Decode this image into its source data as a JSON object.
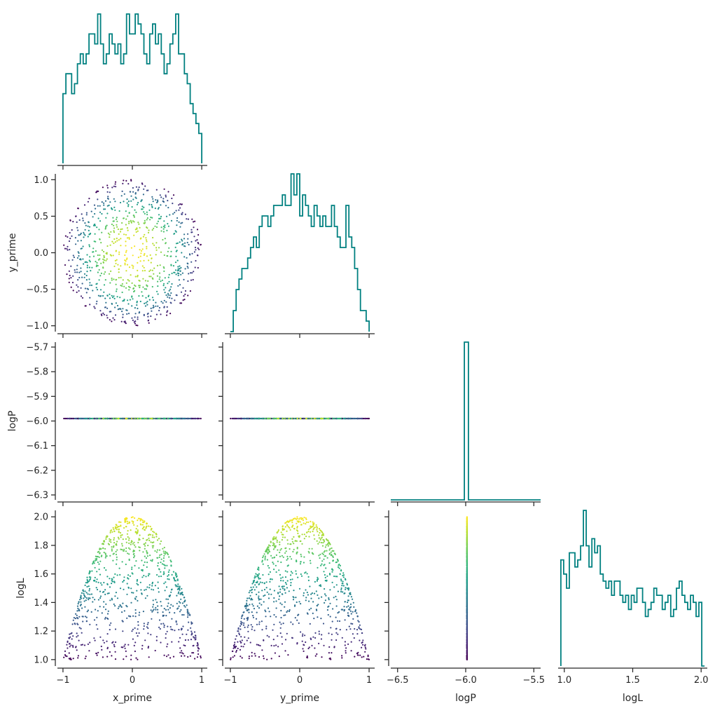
{
  "chart_data": {
    "type": "pairplot",
    "variables": [
      "x_prime",
      "y_prime",
      "logP",
      "logL"
    ],
    "axis_labels": {
      "x": [
        "x_prime",
        "y_prime",
        "logP",
        "logL"
      ],
      "y": [
        "y_prime",
        "logP",
        "logL"
      ]
    },
    "ranges": {
      "x_prime": [
        -1.08,
        1.08
      ],
      "y_prime": [
        -1.08,
        1.08
      ],
      "logP": [
        -6.32,
        -5.68
      ],
      "logP_hist": [
        -6.55,
        -5.45
      ],
      "logL": [
        0.955,
        2.045
      ]
    },
    "ticks": {
      "x_prime": [
        -1,
        0,
        1
      ],
      "y_prime_x": [
        -1,
        0,
        1
      ],
      "y_prime_y": [
        -1.0,
        -0.5,
        0.0,
        0.5,
        1.0
      ],
      "logP_y": [
        -5.7,
        -5.8,
        -5.9,
        -6.0,
        -6.1,
        -6.2,
        -6.3
      ],
      "logP_x": [
        -6.5,
        -6.0,
        -5.5
      ],
      "logL_y": [
        1.0,
        1.2,
        1.4,
        1.6,
        1.8,
        2.0
      ],
      "logL_x": [
        1.0,
        1.5,
        2.0
      ]
    },
    "tick_labels": {
      "x_prime": [
        "−1",
        "0",
        "1"
      ],
      "y_prime_y": [
        "−1.0",
        "−0.5",
        "0.0",
        "0.5",
        "1.0"
      ],
      "logP_y": [
        "−5.7",
        "−5.8",
        "−5.9",
        "−6.0",
        "−6.1",
        "−6.2",
        "−6.3"
      ],
      "logP_x": [
        "−6.5",
        "−6.0",
        "−5.5"
      ],
      "logL_y": [
        "1.0",
        "1.2",
        "1.4",
        "1.6",
        "1.8",
        "2.0"
      ],
      "logL_x": [
        "1.0",
        "1.5",
        "2.0"
      ]
    },
    "constant_logP": -5.99,
    "scatter_color_map": "viridis (by logL)",
    "histograms": {
      "x_prime": {
        "range": [
          -1,
          1
        ],
        "max": 15,
        "counts": [
          7,
          9,
          9,
          7,
          8,
          10,
          11,
          10,
          11,
          13,
          13,
          12,
          15,
          12,
          10,
          11,
          13,
          12,
          11,
          12,
          10,
          11,
          15,
          13,
          13,
          15,
          14,
          13,
          11,
          10,
          13,
          14,
          12,
          13,
          11,
          9,
          10,
          12,
          13,
          15,
          11,
          11,
          9,
          8,
          6,
          5,
          4,
          3
        ]
      },
      "y_prime": {
        "range": [
          -1,
          1
        ],
        "max": 15,
        "counts": [
          0,
          2,
          4,
          5,
          6,
          6,
          7,
          8,
          9,
          8,
          10,
          11,
          11,
          10,
          11,
          12,
          12,
          12,
          13,
          12,
          12,
          15,
          13,
          15,
          11,
          13,
          12,
          11,
          10,
          12,
          11,
          10,
          11,
          10,
          10,
          12,
          10,
          9,
          8,
          8,
          12,
          9,
          8,
          6,
          4,
          2,
          2,
          1
        ]
      },
      "logP": {
        "bin_edges": [
          -6.01,
          -5.98
        ],
        "heights": [
          1.0
        ]
      },
      "logL": {
        "range": [
          0.975,
          2.025
        ],
        "max": 22,
        "counts": [
          15,
          13,
          11,
          16,
          16,
          14,
          15,
          17,
          22,
          17,
          14,
          18,
          16,
          17,
          13,
          12,
          11,
          12,
          10,
          12,
          12,
          10,
          9,
          10,
          8,
          10,
          9,
          11,
          11,
          9,
          7,
          8,
          9,
          11,
          10,
          10,
          8,
          9,
          10,
          7,
          8,
          11,
          12,
          10,
          9,
          8,
          10,
          9,
          7,
          9,
          0
        ]
      }
    },
    "grid": false,
    "legend": "none"
  },
  "colors": {
    "histogram_line": "#008080",
    "axis": "#262626",
    "viridis_low": "#440154",
    "viridis_high": "#fde725"
  }
}
